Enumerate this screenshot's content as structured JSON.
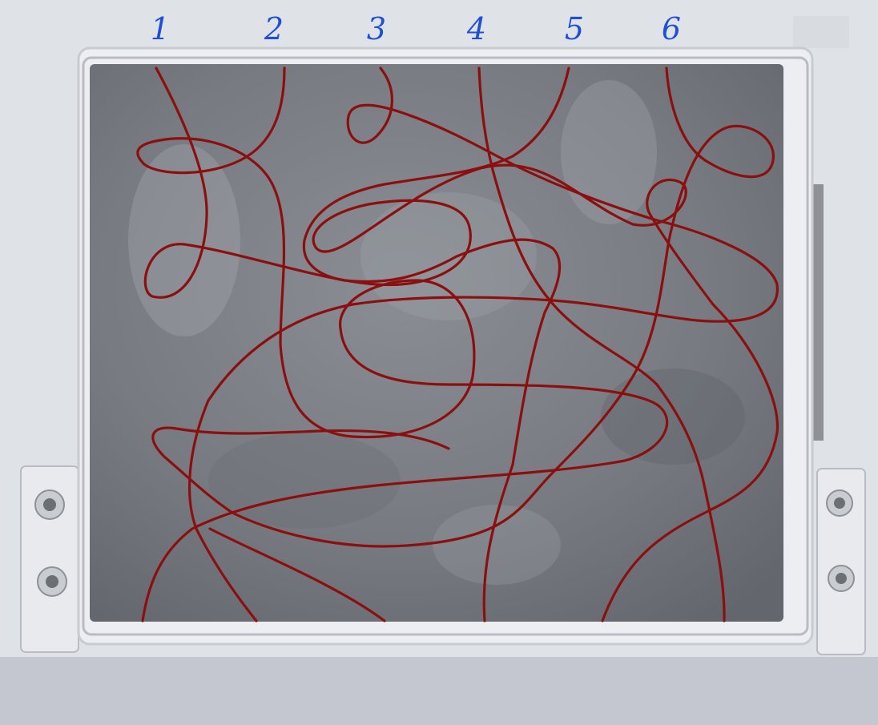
{
  "puzzle": {
    "labels": [
      "1",
      "2",
      "3",
      "4",
      "5",
      "6"
    ],
    "line_color": "#8c0f0f",
    "label_color": "#1f4fd6",
    "board_color": "#7d8187",
    "frame_color": "#eceef1"
  }
}
